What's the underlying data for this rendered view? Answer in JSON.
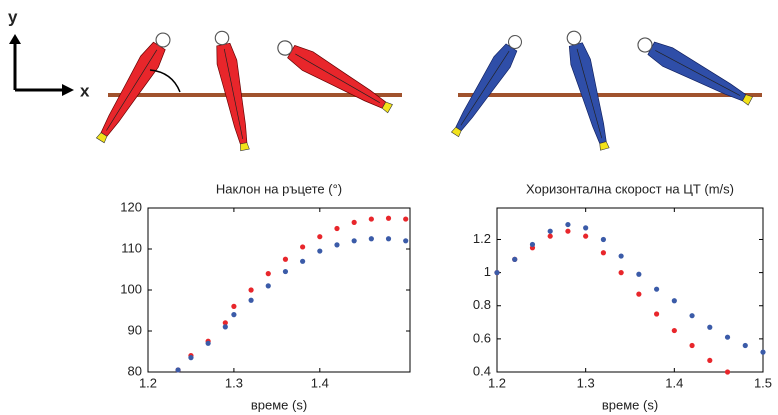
{
  "illustration": {
    "y_label": "y",
    "x_label": "x"
  },
  "chart_data": [
    {
      "type": "scatter",
      "title": "Наклон на ръцете (°)",
      "x_label": "време  (s)",
      "x": [
        1.235,
        1.25,
        1.27,
        1.29,
        1.3,
        1.32,
        1.34,
        1.36,
        1.38,
        1.4,
        1.42,
        1.44,
        1.46,
        1.48,
        1.5
      ],
      "series": [
        {
          "color": "#e8262b",
          "values": [
            80.5,
            84,
            87.5,
            92,
            96,
            100,
            104,
            107.5,
            110.5,
            113,
            115,
            116.5,
            117.3,
            117.5,
            117.3
          ]
        },
        {
          "color": "#3b5ba8",
          "values": [
            80.5,
            83.5,
            87,
            91,
            94,
            97.5,
            101,
            104.5,
            107,
            109.5,
            111,
            112,
            112.5,
            112.5,
            112
          ]
        }
      ],
      "xlim": [
        1.2,
        1.505
      ],
      "xticks": [
        1.2,
        1.3,
        1.4
      ],
      "ylim": [
        80,
        120
      ],
      "yticks": [
        80,
        90,
        100,
        110,
        120
      ]
    },
    {
      "type": "scatter",
      "title": "Хоризонтална скорост на ЦТ (m/s)",
      "x_label": "време  (s)",
      "x": [
        1.2,
        1.22,
        1.24,
        1.26,
        1.28,
        1.3,
        1.32,
        1.34,
        1.36,
        1.38,
        1.4,
        1.42,
        1.44,
        1.46,
        1.48,
        1.5
      ],
      "series": [
        {
          "color": "#e8262b",
          "values": [
            1.0,
            1.08,
            1.15,
            1.22,
            1.25,
            1.22,
            1.12,
            1.0,
            0.87,
            0.75,
            0.65,
            0.56,
            0.47,
            0.4,
            null,
            null
          ]
        },
        {
          "color": "#3b5ba8",
          "values": [
            1.0,
            1.08,
            1.17,
            1.25,
            1.29,
            1.27,
            1.2,
            1.1,
            0.99,
            0.9,
            0.83,
            0.74,
            0.67,
            0.61,
            0.56,
            0.52
          ]
        }
      ],
      "xlim": [
        1.2,
        1.5
      ],
      "xticks": [
        1.2,
        1.3,
        1.4,
        1.5
      ],
      "ylim": [
        0.4,
        1.39
      ],
      "yticks": [
        0.4,
        0.6,
        0.8,
        1,
        1.2
      ]
    }
  ]
}
